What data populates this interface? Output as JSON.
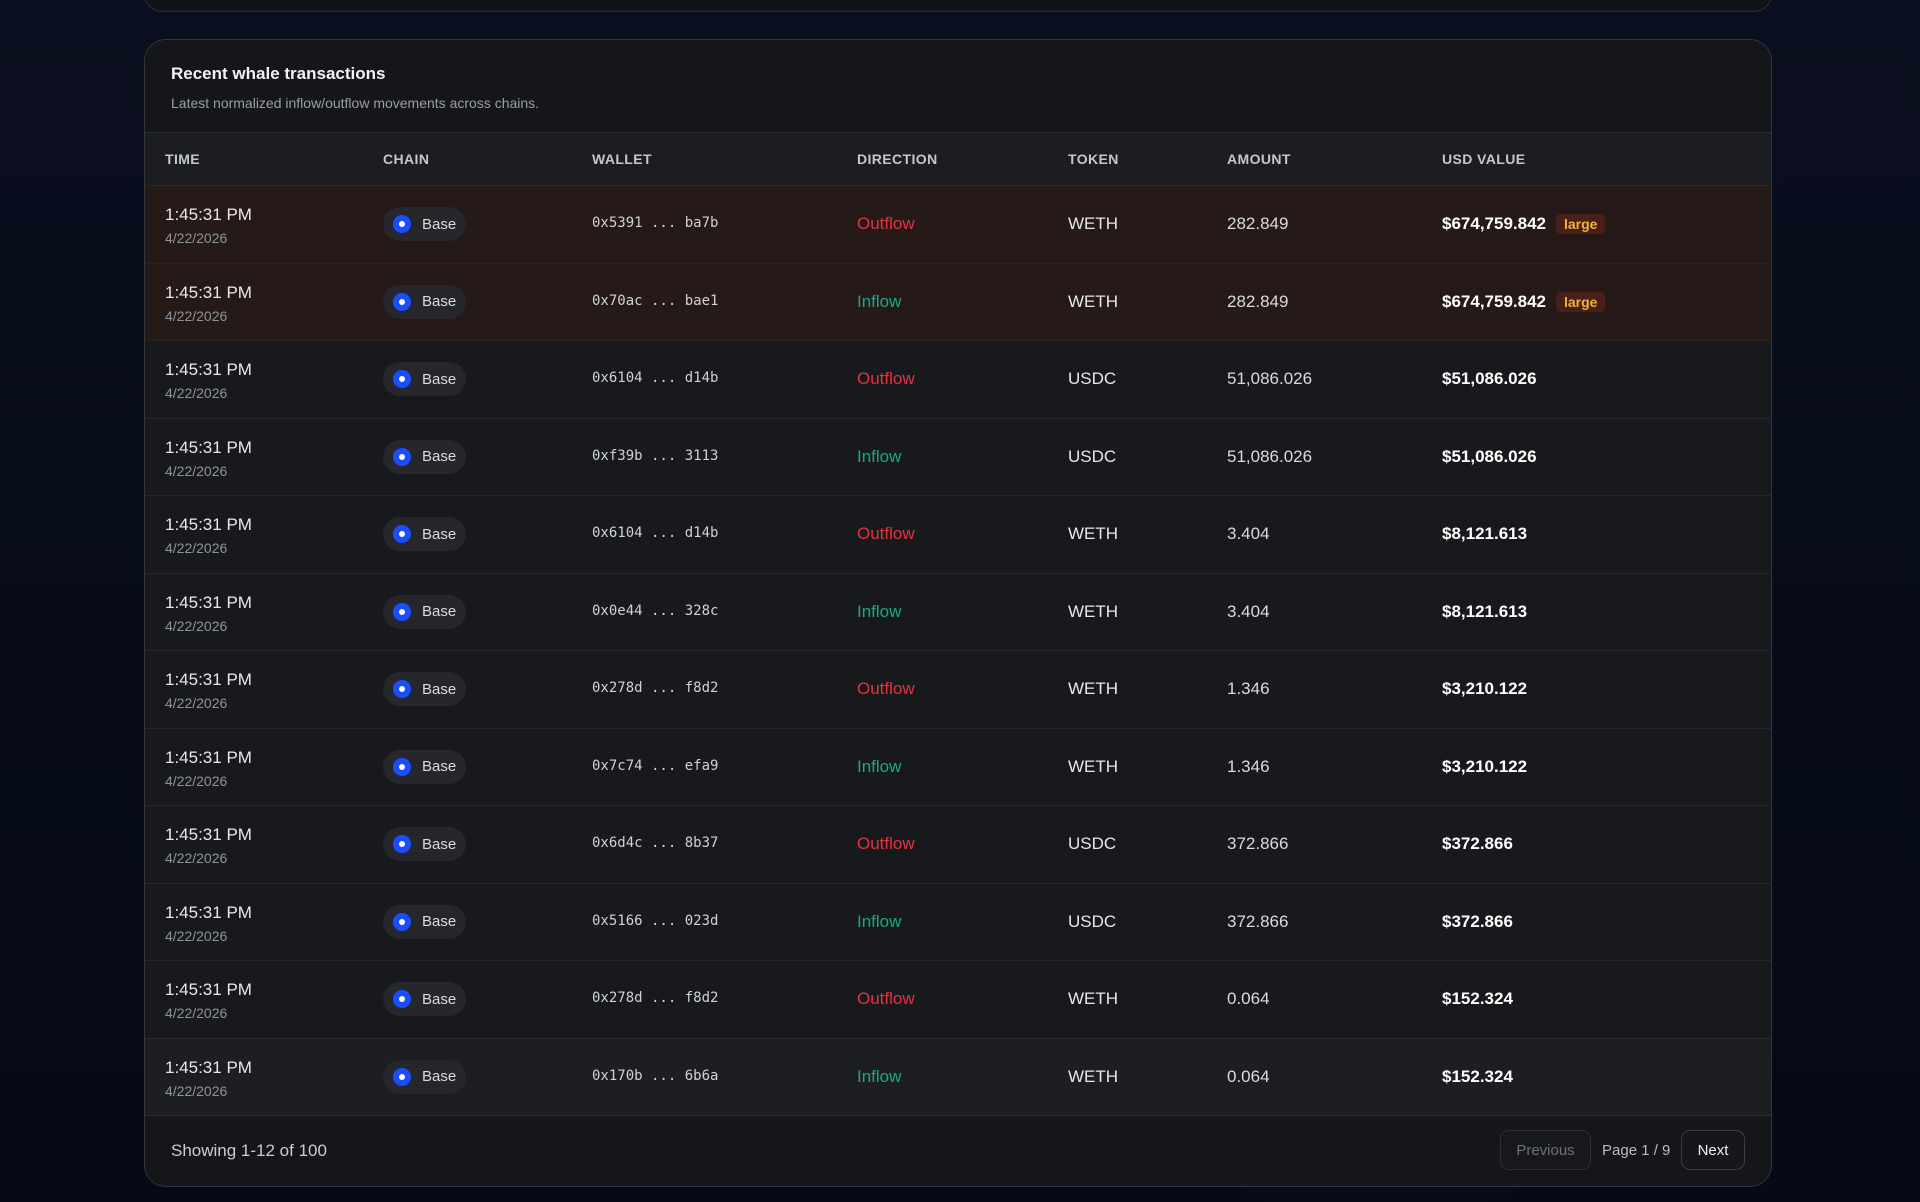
{
  "card": {
    "title": "Recent whale transactions",
    "subtitle": "Latest normalized inflow/outflow movements across chains."
  },
  "columns": {
    "time": "TIME",
    "chain": "CHAIN",
    "wallet": "WALLET",
    "direction": "DIRECTION",
    "token": "TOKEN",
    "amount": "AMOUNT",
    "usd_value": "USD VALUE"
  },
  "rows": [
    {
      "time": "1:45:31 PM",
      "date": "4/22/2026",
      "chain": "Base",
      "wallet": "0x5391 ... ba7b",
      "direction": "Outflow",
      "token": "WETH",
      "amount": "282.849",
      "usd": "$674,759.842",
      "badge": "large"
    },
    {
      "time": "1:45:31 PM",
      "date": "4/22/2026",
      "chain": "Base",
      "wallet": "0x70ac ... bae1",
      "direction": "Inflow",
      "token": "WETH",
      "amount": "282.849",
      "usd": "$674,759.842",
      "badge": "large"
    },
    {
      "time": "1:45:31 PM",
      "date": "4/22/2026",
      "chain": "Base",
      "wallet": "0x6104 ... d14b",
      "direction": "Outflow",
      "token": "USDC",
      "amount": "51,086.026",
      "usd": "$51,086.026",
      "badge": ""
    },
    {
      "time": "1:45:31 PM",
      "date": "4/22/2026",
      "chain": "Base",
      "wallet": "0xf39b ... 3113",
      "direction": "Inflow",
      "token": "USDC",
      "amount": "51,086.026",
      "usd": "$51,086.026",
      "badge": ""
    },
    {
      "time": "1:45:31 PM",
      "date": "4/22/2026",
      "chain": "Base",
      "wallet": "0x6104 ... d14b",
      "direction": "Outflow",
      "token": "WETH",
      "amount": "3.404",
      "usd": "$8,121.613",
      "badge": ""
    },
    {
      "time": "1:45:31 PM",
      "date": "4/22/2026",
      "chain": "Base",
      "wallet": "0x0e44 ... 328c",
      "direction": "Inflow",
      "token": "WETH",
      "amount": "3.404",
      "usd": "$8,121.613",
      "badge": ""
    },
    {
      "time": "1:45:31 PM",
      "date": "4/22/2026",
      "chain": "Base",
      "wallet": "0x278d ... f8d2",
      "direction": "Outflow",
      "token": "WETH",
      "amount": "1.346",
      "usd": "$3,210.122",
      "badge": ""
    },
    {
      "time": "1:45:31 PM",
      "date": "4/22/2026",
      "chain": "Base",
      "wallet": "0x7c74 ... efa9",
      "direction": "Inflow",
      "token": "WETH",
      "amount": "1.346",
      "usd": "$3,210.122",
      "badge": ""
    },
    {
      "time": "1:45:31 PM",
      "date": "4/22/2026",
      "chain": "Base",
      "wallet": "0x6d4c ... 8b37",
      "direction": "Outflow",
      "token": "USDC",
      "amount": "372.866",
      "usd": "$372.866",
      "badge": ""
    },
    {
      "time": "1:45:31 PM",
      "date": "4/22/2026",
      "chain": "Base",
      "wallet": "0x5166 ... 023d",
      "direction": "Inflow",
      "token": "USDC",
      "amount": "372.866",
      "usd": "$372.866",
      "badge": ""
    },
    {
      "time": "1:45:31 PM",
      "date": "4/22/2026",
      "chain": "Base",
      "wallet": "0x278d ... f8d2",
      "direction": "Outflow",
      "token": "WETH",
      "amount": "0.064",
      "usd": "$152.324",
      "badge": ""
    },
    {
      "time": "1:45:31 PM",
      "date": "4/22/2026",
      "chain": "Base",
      "wallet": "0x170b ... 6b6a",
      "direction": "Inflow",
      "token": "WETH",
      "amount": "0.064",
      "usd": "$152.324",
      "badge": ""
    }
  ],
  "footer": {
    "showing": "Showing 1-12 of 100",
    "previous_label": "Previous",
    "page_info": "Page 1 / 9",
    "next_label": "Next"
  },
  "colors": {
    "outflow": "#e5333f",
    "inflow": "#17a98a",
    "chain_base": "#1a4dff",
    "badge_text": "#f3b23b"
  }
}
